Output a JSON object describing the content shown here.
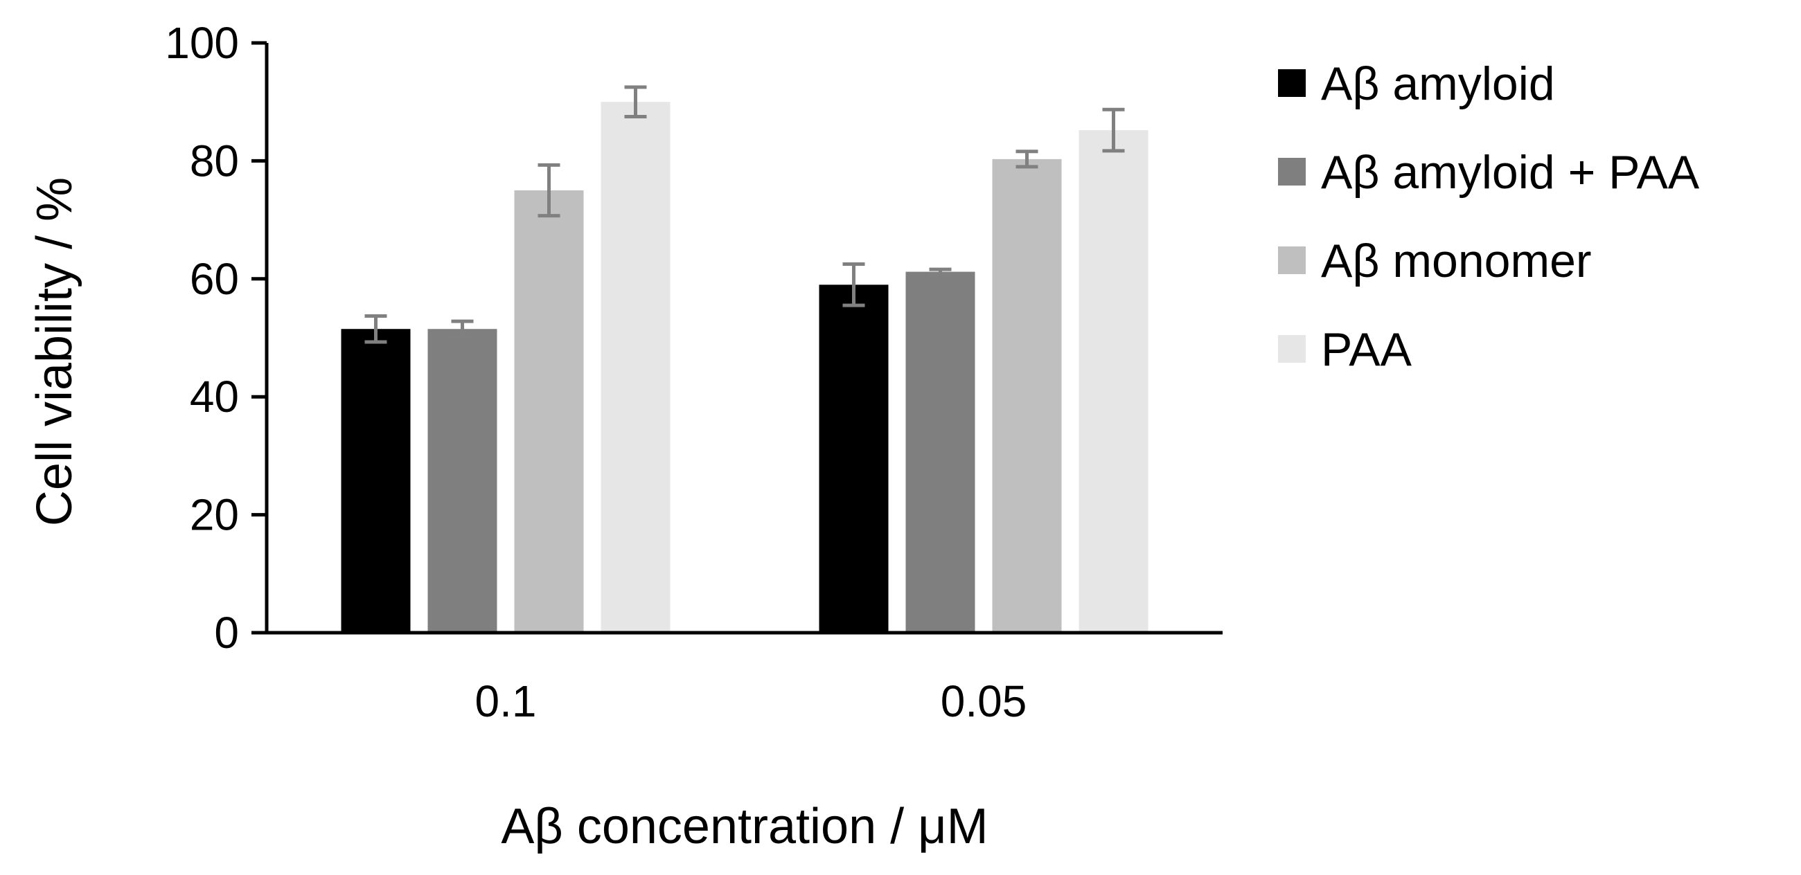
{
  "chart_data": {
    "type": "bar",
    "title": "",
    "xlabel": "Aβ concentration / μM",
    "ylabel": "Cell viability / %",
    "ylim": [
      0,
      100
    ],
    "yticks": [
      0,
      20,
      40,
      60,
      80,
      100
    ],
    "grid": false,
    "legend_position": "right",
    "categories": [
      "0.1",
      "0.05"
    ],
    "series": [
      {
        "name": "Aβ amyloid",
        "color": "#000000",
        "values": [
          51.5,
          59
        ],
        "errors": [
          2.2,
          3.5
        ]
      },
      {
        "name": "Aβ amyloid + PAA",
        "color": "#7f7f7f",
        "values": [
          51.5,
          61.2
        ],
        "errors": [
          1.3,
          0.4
        ]
      },
      {
        "name": "Aβ monomer",
        "color": "#bfbfbf",
        "values": [
          75,
          80.3
        ],
        "errors": [
          4.3,
          1.3
        ]
      },
      {
        "name": "PAA",
        "color": "#e6e6e6",
        "values": [
          90,
          85.2
        ],
        "errors": [
          2.5,
          3.5
        ]
      }
    ],
    "error_bar_color": "#808080",
    "axis_color": "#000000"
  }
}
